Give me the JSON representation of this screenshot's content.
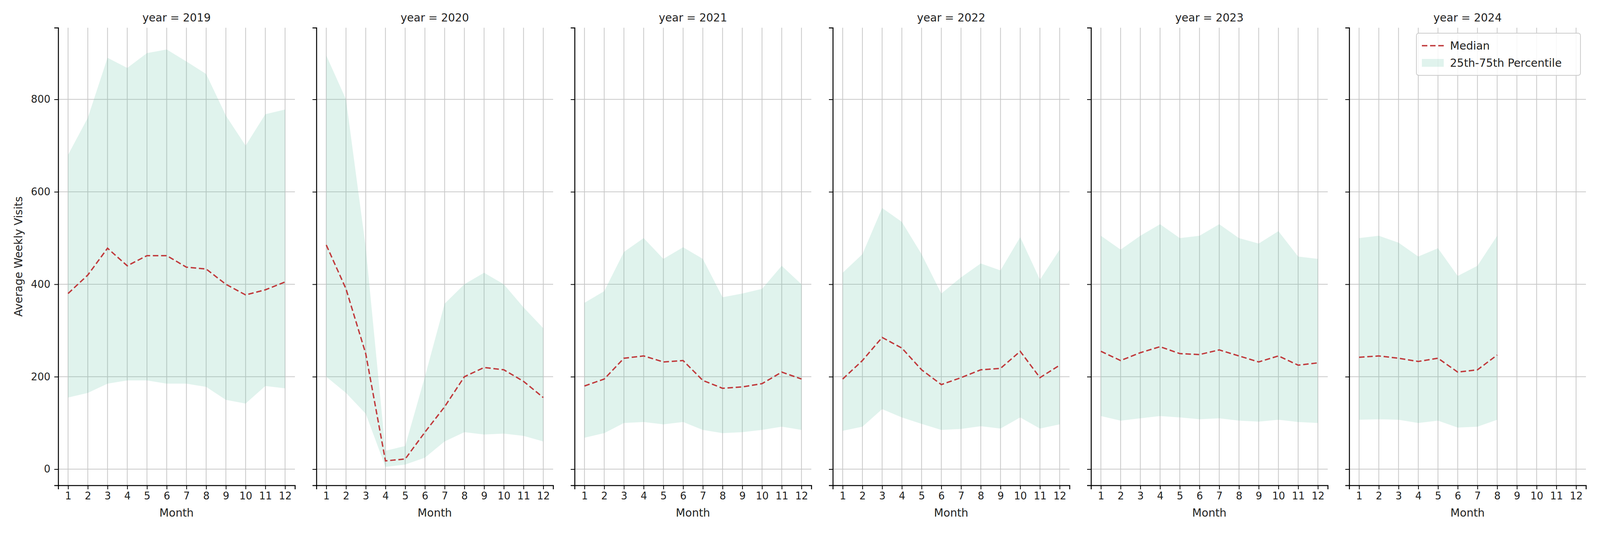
{
  "chart_data": [
    {
      "type": "line",
      "title": "year = 2019",
      "x_label": "Month",
      "y_label": "Average Weekly Visits",
      "x": [
        1,
        2,
        3,
        4,
        5,
        6,
        7,
        8,
        9,
        10,
        11,
        12
      ],
      "xlim": [
        0.5,
        12.5
      ],
      "xticks": [
        1,
        2,
        3,
        4,
        5,
        6,
        7,
        8,
        9,
        10,
        11,
        12
      ],
      "ylim": [
        -35,
        955
      ],
      "yticks": [
        0,
        200,
        400,
        600,
        800
      ],
      "grid": true,
      "series": [
        {
          "type": "band",
          "color": "#66c2a5",
          "lower": [
            155,
            165,
            185,
            192,
            192,
            185,
            185,
            178,
            150,
            142,
            180,
            175
          ],
          "upper": [
            680,
            760,
            890,
            868,
            900,
            908,
            882,
            855,
            765,
            700,
            768,
            778
          ]
        },
        {
          "type": "line",
          "color": "#c0393b",
          "line_style": "dashed",
          "values": [
            380,
            420,
            478,
            440,
            462,
            462,
            437,
            433,
            400,
            377,
            388,
            405
          ]
        }
      ]
    },
    {
      "type": "line",
      "title": "year = 2020",
      "x_label": "Month",
      "x": [
        1,
        2,
        3,
        4,
        5,
        6,
        7,
        8,
        9,
        10,
        11,
        12
      ],
      "xlim": [
        0.5,
        12.5
      ],
      "xticks": [
        1,
        2,
        3,
        4,
        5,
        6,
        7,
        8,
        9,
        10,
        11,
        12
      ],
      "ylim": [
        -35,
        955
      ],
      "yticks": [
        0,
        200,
        400,
        600,
        800
      ],
      "grid": true,
      "tick_labels": "x",
      "series": [
        {
          "type": "band",
          "color": "#66c2a5",
          "lower": [
            200,
            165,
            120,
            5,
            10,
            25,
            60,
            80,
            75,
            77,
            72,
            60
          ],
          "upper": [
            895,
            800,
            480,
            40,
            50,
            200,
            358,
            400,
            425,
            400,
            350,
            305
          ]
        },
        {
          "type": "line",
          "color": "#c0393b",
          "line_style": "dashed",
          "values": [
            485,
            390,
            250,
            18,
            22,
            80,
            135,
            200,
            220,
            215,
            190,
            155
          ]
        }
      ]
    },
    {
      "type": "line",
      "title": "year = 2021",
      "x_label": "Month",
      "x": [
        1,
        2,
        3,
        4,
        5,
        6,
        7,
        8,
        9,
        10,
        11,
        12
      ],
      "xlim": [
        0.5,
        12.5
      ],
      "xticks": [
        1,
        2,
        3,
        4,
        5,
        6,
        7,
        8,
        9,
        10,
        11,
        12
      ],
      "ylim": [
        -35,
        955
      ],
      "yticks": [
        0,
        200,
        400,
        600,
        800
      ],
      "grid": true,
      "tick_labels": "x",
      "series": [
        {
          "type": "band",
          "color": "#66c2a5",
          "lower": [
            68,
            78,
            100,
            102,
            97,
            102,
            85,
            78,
            80,
            85,
            92,
            85
          ],
          "upper": [
            360,
            385,
            470,
            500,
            455,
            480,
            455,
            372,
            380,
            390,
            440,
            400
          ]
        },
        {
          "type": "line",
          "color": "#c0393b",
          "line_style": "dashed",
          "values": [
            180,
            195,
            240,
            245,
            232,
            235,
            192,
            175,
            178,
            185,
            210,
            195
          ]
        }
      ]
    },
    {
      "type": "line",
      "title": "year = 2022",
      "x_label": "Month",
      "x": [
        1,
        2,
        3,
        4,
        5,
        6,
        7,
        8,
        9,
        10,
        11,
        12
      ],
      "xlim": [
        0.5,
        12.5
      ],
      "xticks": [
        1,
        2,
        3,
        4,
        5,
        6,
        7,
        8,
        9,
        10,
        11,
        12
      ],
      "ylim": [
        -35,
        955
      ],
      "yticks": [
        0,
        200,
        400,
        600,
        800
      ],
      "grid": true,
      "tick_labels": "x",
      "series": [
        {
          "type": "band",
          "color": "#66c2a5",
          "lower": [
            83,
            92,
            130,
            112,
            98,
            85,
            87,
            93,
            88,
            112,
            88,
            97
          ],
          "upper": [
            425,
            465,
            565,
            535,
            465,
            380,
            415,
            445,
            430,
            502,
            410,
            475
          ]
        },
        {
          "type": "line",
          "color": "#c0393b",
          "line_style": "dashed",
          "values": [
            195,
            235,
            285,
            262,
            215,
            183,
            198,
            215,
            218,
            255,
            198,
            225
          ]
        }
      ]
    },
    {
      "type": "line",
      "title": "year = 2023",
      "x_label": "Month",
      "x": [
        1,
        2,
        3,
        4,
        5,
        6,
        7,
        8,
        9,
        10,
        11,
        12
      ],
      "xlim": [
        0.5,
        12.5
      ],
      "xticks": [
        1,
        2,
        3,
        4,
        5,
        6,
        7,
        8,
        9,
        10,
        11,
        12
      ],
      "ylim": [
        -35,
        955
      ],
      "yticks": [
        0,
        200,
        400,
        600,
        800
      ],
      "grid": true,
      "tick_labels": "x",
      "series": [
        {
          "type": "band",
          "color": "#66c2a5",
          "lower": [
            115,
            105,
            110,
            115,
            112,
            108,
            110,
            105,
            103,
            107,
            102,
            100
          ],
          "upper": [
            505,
            475,
            505,
            530,
            500,
            505,
            530,
            500,
            488,
            515,
            460,
            455
          ]
        },
        {
          "type": "line",
          "color": "#c0393b",
          "line_style": "dashed",
          "values": [
            255,
            235,
            252,
            265,
            250,
            248,
            258,
            245,
            232,
            245,
            225,
            230
          ]
        }
      ]
    },
    {
      "type": "line",
      "title": "year = 2024",
      "x_label": "Month",
      "x": [
        1,
        2,
        3,
        4,
        5,
        6,
        7,
        8
      ],
      "xlim": [
        0.5,
        12.5
      ],
      "xticks": [
        1,
        2,
        3,
        4,
        5,
        6,
        7,
        8,
        9,
        10,
        11,
        12
      ],
      "ylim": [
        -35,
        955
      ],
      "yticks": [
        0,
        200,
        400,
        600,
        800
      ],
      "grid": true,
      "tick_labels": "x",
      "legend": "upper right",
      "series": [
        {
          "type": "band",
          "name": "25th-75th Percentile",
          "color": "#66c2a5",
          "lower": [
            107,
            108,
            107,
            100,
            105,
            90,
            92,
            107
          ],
          "upper": [
            500,
            505,
            490,
            460,
            478,
            418,
            440,
            505
          ]
        },
        {
          "type": "line",
          "name": "Median",
          "color": "#c0393b",
          "line_style": "dashed",
          "values": [
            242,
            245,
            240,
            233,
            240,
            210,
            215,
            247
          ]
        }
      ]
    }
  ]
}
